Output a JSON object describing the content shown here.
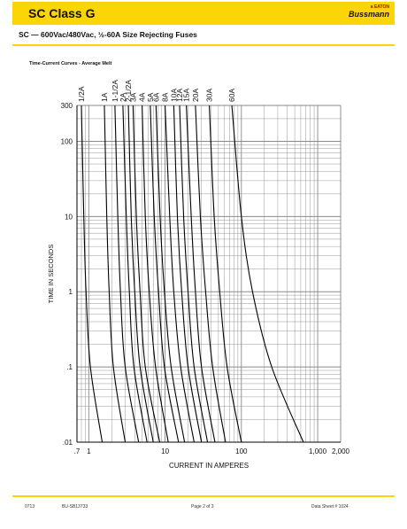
{
  "header": {
    "title": "SC Class G",
    "logo_top": "a EATON",
    "logo_brand": "Bussmann"
  },
  "subtitle": "SC — 600Vac/480Vac, ½-60A Size Rejecting Fuses",
  "footer": {
    "date": "0713",
    "doc_code": "BU-SB13733",
    "page": "Page 2 of 3",
    "datasheet": "Data Sheet # 1024"
  },
  "colors": {
    "banner": "#fcd507",
    "grid": "#8a8a8a",
    "curve": "#000000"
  },
  "chart_data": {
    "type": "line",
    "title": "Time-Current Curves - Average Melt",
    "xlabel": "CURRENT   IN  AMPERES",
    "ylabel": "TIME IN SECONDS",
    "x_scale": "log",
    "y_scale": "log",
    "xlim": [
      0.7,
      2000
    ],
    "ylim": [
      0.01,
      300
    ],
    "grid": true,
    "x_ticks": [
      {
        "value": 0.7,
        "label": ".7"
      },
      {
        "value": 1,
        "label": "1"
      },
      {
        "value": 10,
        "label": "10"
      },
      {
        "value": 100,
        "label": "100"
      },
      {
        "value": 1000,
        "label": "1,000"
      },
      {
        "value": 2000,
        "label": "2,000"
      }
    ],
    "y_ticks": [
      {
        "value": 300,
        "label": "300"
      },
      {
        "value": 100,
        "label": "100"
      },
      {
        "value": 10,
        "label": "10"
      },
      {
        "value": 1,
        "label": "1"
      },
      {
        "value": 0.1,
        "label": ".1"
      },
      {
        "value": 0.01,
        "label": ".01"
      }
    ],
    "series": [
      {
        "name": "1/2A",
        "points": [
          [
            0.8,
            300
          ],
          [
            0.86,
            10
          ],
          [
            0.92,
            1
          ],
          [
            1.05,
            0.1
          ],
          [
            1.5,
            0.01
          ]
        ]
      },
      {
        "name": "1A",
        "points": [
          [
            1.6,
            300
          ],
          [
            1.72,
            10
          ],
          [
            1.85,
            1
          ],
          [
            2.1,
            0.1
          ],
          [
            3.0,
            0.01
          ]
        ]
      },
      {
        "name": "1-1/2A",
        "points": [
          [
            2.2,
            300
          ],
          [
            2.4,
            10
          ],
          [
            2.6,
            1
          ],
          [
            3.0,
            0.1
          ],
          [
            4.5,
            0.01
          ]
        ]
      },
      {
        "name": "2A",
        "points": [
          [
            2.8,
            300
          ],
          [
            3.1,
            10
          ],
          [
            3.4,
            1
          ],
          [
            3.9,
            0.1
          ],
          [
            5.8,
            0.01
          ]
        ]
      },
      {
        "name": "2-1/2A",
        "points": [
          [
            3.3,
            300
          ],
          [
            3.6,
            10
          ],
          [
            4.0,
            1
          ],
          [
            4.7,
            0.1
          ],
          [
            7.0,
            0.01
          ]
        ]
      },
      {
        "name": "3A",
        "points": [
          [
            3.8,
            300
          ],
          [
            4.2,
            10
          ],
          [
            4.7,
            1
          ],
          [
            5.5,
            0.1
          ],
          [
            8.5,
            0.01
          ]
        ]
      },
      {
        "name": "4A",
        "points": [
          [
            5.0,
            300
          ],
          [
            5.5,
            10
          ],
          [
            6.2,
            1
          ],
          [
            7.5,
            0.1
          ],
          [
            11,
            0.01
          ]
        ]
      },
      {
        "name": "5A",
        "points": [
          [
            6.4,
            300
          ],
          [
            7.2,
            10
          ],
          [
            8.2,
            1
          ],
          [
            9.8,
            0.1
          ],
          [
            15,
            0.01
          ]
        ]
      },
      {
        "name": "6A",
        "points": [
          [
            7.6,
            300
          ],
          [
            8.6,
            10
          ],
          [
            9.8,
            1
          ],
          [
            12,
            0.1
          ],
          [
            18,
            0.01
          ]
        ]
      },
      {
        "name": "8A",
        "points": [
          [
            10,
            300
          ],
          [
            11.5,
            10
          ],
          [
            13,
            1
          ],
          [
            16,
            0.1
          ],
          [
            24,
            0.01
          ]
        ]
      },
      {
        "name": "10A",
        "points": [
          [
            13,
            300
          ],
          [
            14.5,
            10
          ],
          [
            16.5,
            1
          ],
          [
            20,
            0.1
          ],
          [
            30,
            0.01
          ]
        ]
      },
      {
        "name": "12A",
        "points": [
          [
            15.5,
            300
          ],
          [
            17.5,
            10
          ],
          [
            20,
            1
          ],
          [
            24,
            0.1
          ],
          [
            36,
            0.01
          ]
        ]
      },
      {
        "name": "15A",
        "points": [
          [
            19,
            300
          ],
          [
            22,
            10
          ],
          [
            25,
            1
          ],
          [
            30,
            0.1
          ],
          [
            45,
            0.01
          ]
        ]
      },
      {
        "name": "20A",
        "points": [
          [
            25,
            300
          ],
          [
            29,
            10
          ],
          [
            34,
            1
          ],
          [
            42,
            0.1
          ],
          [
            62,
            0.01
          ]
        ]
      },
      {
        "name": "30A",
        "points": [
          [
            38,
            300
          ],
          [
            44,
            10
          ],
          [
            52,
            1
          ],
          [
            65,
            0.1
          ],
          [
            100,
            0.01
          ]
        ]
      },
      {
        "name": "60A",
        "points": [
          [
            75,
            300
          ],
          [
            100,
            10
          ],
          [
            140,
            1
          ],
          [
            250,
            0.1
          ],
          [
            650,
            0.01
          ]
        ]
      }
    ]
  }
}
